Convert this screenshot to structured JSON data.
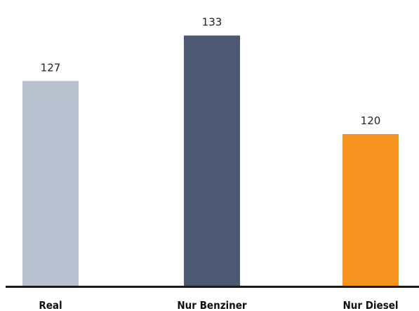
{
  "chart_data": {
    "type": "bar",
    "categories": [
      "Real",
      "Nur Benziner",
      "Nur Diesel"
    ],
    "values": [
      127,
      133,
      120
    ],
    "colors": [
      "#b8c2cf",
      "#4b5a72",
      "#f6921e"
    ],
    "value_labels": [
      "127",
      "133",
      "120"
    ],
    "title": "",
    "xlabel": "",
    "ylabel": "",
    "ylim": [
      100,
      133
    ],
    "grid": false,
    "axis_color": "#1a1a1a"
  }
}
